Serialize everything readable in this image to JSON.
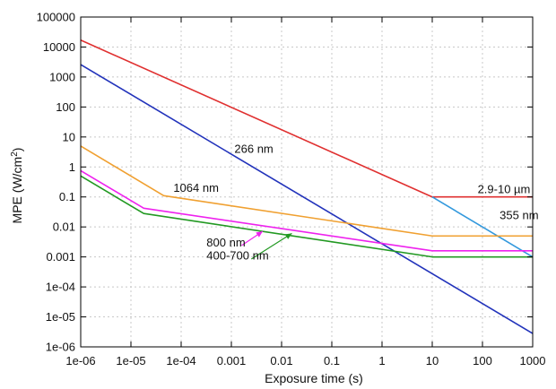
{
  "chart_data": {
    "type": "line",
    "title": "",
    "xlabel": "Exposure time (s)",
    "ylabel_main": "MPE (W/cm",
    "ylabel_sup": "2",
    "ylabel_end": ")",
    "xscale": "log",
    "yscale": "log",
    "xlim": [
      1e-06,
      1000
    ],
    "ylim": [
      1e-06,
      100000
    ],
    "grid": true,
    "x_ticks": [
      {
        "value": 1e-06,
        "label": "1e-06"
      },
      {
        "value": 1e-05,
        "label": "1e-05"
      },
      {
        "value": 0.0001,
        "label": "1e-04"
      },
      {
        "value": 0.001,
        "label": "0.001"
      },
      {
        "value": 0.01,
        "label": "0.01"
      },
      {
        "value": 0.1,
        "label": "0.1"
      },
      {
        "value": 1,
        "label": "1"
      },
      {
        "value": 10,
        "label": "10"
      },
      {
        "value": 100,
        "label": "100"
      },
      {
        "value": 1000,
        "label": "1000"
      }
    ],
    "y_ticks": [
      {
        "value": 1e-06,
        "label": "1e-06"
      },
      {
        "value": 1e-05,
        "label": "1e-05"
      },
      {
        "value": 0.0001,
        "label": "1e-04"
      },
      {
        "value": 0.001,
        "label": "0.001"
      },
      {
        "value": 0.01,
        "label": "0.01"
      },
      {
        "value": 0.1,
        "label": "0.1"
      },
      {
        "value": 1,
        "label": "1"
      },
      {
        "value": 10,
        "label": "10"
      },
      {
        "value": 100,
        "label": "100"
      },
      {
        "value": 1000,
        "label": "1000"
      },
      {
        "value": 10000,
        "label": "10000"
      },
      {
        "value": 100000,
        "label": "100000"
      }
    ],
    "series": [
      {
        "id": "red",
        "name": "2.9-10 µm",
        "color": "#e03030",
        "points": [
          [
            1e-06,
            17000
          ],
          [
            10,
            0.1
          ],
          [
            1000,
            0.1
          ]
        ],
        "label_at": [
          80,
          0.135
        ]
      },
      {
        "id": "lightblue",
        "name": "355 nm",
        "color": "#3399dd",
        "points": [
          [
            10,
            0.1
          ],
          [
            1000,
            0.001
          ]
        ],
        "label_at": [
          220,
          0.018
        ]
      },
      {
        "id": "blue",
        "name": "266 nm",
        "color": "#2233bb",
        "points": [
          [
            1e-06,
            2600
          ],
          [
            1000,
            2.8e-06
          ]
        ],
        "label_at": [
          0.00115,
          3.0
        ]
      },
      {
        "id": "orange",
        "name": "1064 nm",
        "color": "#f0a030",
        "points": [
          [
            1e-06,
            5
          ],
          [
            4.5e-05,
            0.11
          ],
          [
            10,
            0.005
          ],
          [
            1000,
            0.005
          ]
        ],
        "label_at": [
          7e-05,
          0.15
        ]
      },
      {
        "id": "magenta",
        "name": "800 nm",
        "color": "#ee22ee",
        "points": [
          [
            1e-06,
            0.75
          ],
          [
            1.8e-05,
            0.042
          ],
          [
            10,
            0.0016
          ],
          [
            1000,
            0.0016
          ]
        ],
        "label_at": [
          0.00032,
          0.0022
        ]
      },
      {
        "id": "green",
        "name": "400-700 nm",
        "color": "#229922",
        "points": [
          [
            1e-06,
            0.5
          ],
          [
            1.8e-05,
            0.028
          ],
          [
            10,
            0.001
          ],
          [
            1000,
            0.001
          ]
        ],
        "label_at": [
          0.00032,
          0.00082
        ]
      }
    ],
    "annotations": [
      {
        "id": "magenta",
        "color": "#ee22ee",
        "from": [
          0.0016,
          0.0024
        ],
        "to": [
          0.0042,
          0.0071
        ]
      },
      {
        "id": "green",
        "color": "#229922",
        "from": [
          0.0025,
          0.00085
        ],
        "to": [
          0.016,
          0.0061
        ]
      }
    ]
  }
}
